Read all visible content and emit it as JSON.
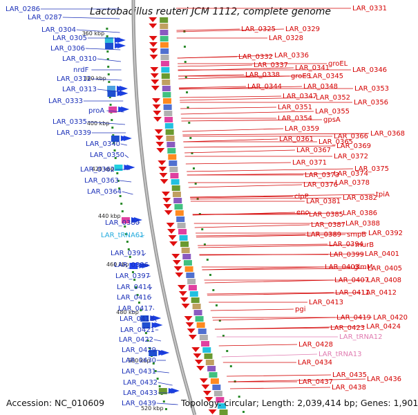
{
  "title": "Lactobacillus reuteri JCM 1112, complete genome",
  "accession": "Accession: NC_010609",
  "summary": "Topology: circular; Length: 2,039,414 bp; Genes: 1,901",
  "colors": {
    "left": "#1a2fb8",
    "right": "#d40000",
    "trna": "#22aadd",
    "trna_right": "#e07ab0"
  },
  "kbp_marks": [
    "360 kbp",
    "380 kbp",
    "400 kbp",
    "420 kbp",
    "440 kbp",
    "460 kbp",
    "480 kbp",
    "500 kbp",
    "520 kbp"
  ],
  "left_labels": [
    "LAR_0286",
    "LAR_0287",
    "LAR_0304",
    "LAR_0305",
    "LAR_0306",
    "LAR_0310",
    "nrdF",
    "LAR_0312",
    "LAR_0313",
    "LAR_0333",
    "proA",
    "LAR_0335",
    "LAR_0339",
    "LAR_0340",
    "LAR_0350",
    "LAR_0362",
    "LAR_0363",
    "LAR_0364",
    "LAR_0380",
    "LAR_tRNA61",
    "LAR_0391",
    "LAR_0396",
    "LAR_0397",
    "LAR_0414",
    "LAR_0416",
    "LAR_0417",
    "LAR_0418",
    "LAR_0421",
    "LAR_0422",
    "LAR_0429",
    "LAR_0430",
    "LAR_0431",
    "LAR_0432",
    "LAR_0433",
    "LAR_0439"
  ],
  "right_labels": [
    "LAR_0331",
    "LAR_0325",
    "LAR_0329",
    "LAR_0328",
    "LAR_0332",
    "LAR_0336",
    "groEL",
    "LAR_0337",
    "LAR_0341",
    "LAR_0346",
    "LAR_0338",
    "groES",
    "LAR_0345",
    "LAR_0344",
    "LAR_0348",
    "LAR_0353",
    "LAR_0347",
    "LAR_0352",
    "LAR_0356",
    "LAR_0351",
    "LAR_0355",
    "LAR_0354",
    "gpsA",
    "LAR_0359",
    "LAR_0366",
    "LAR_0368",
    "LAR_0361",
    "LAR_0365",
    "LAR_0369",
    "LAR_0367",
    "LAR_0372",
    "LAR_0371",
    "LAR_0375",
    "LAR_0373",
    "LAR_0374",
    "LAR_0376",
    "LAR_0378",
    "clpP",
    "tpiA",
    "LAR_0381",
    "LAR_0382",
    "eno",
    "LAR_0385",
    "LAR_0386",
    "LAR_0387",
    "LAR_0388",
    "LAR_0389",
    "smpB",
    "LAR_0392",
    "LAR_0394",
    "murB",
    "LAR_0399",
    "LAR_0401",
    "LAR_0403",
    "glmM",
    "LAR_0405",
    "LAR_0407",
    "LAR_0408",
    "LAR_0411",
    "LAR_0412",
    "LAR_0413",
    "pgi",
    "LAR_0419",
    "LAR_0420",
    "LAR_0423",
    "LAR_0424",
    "LAR_tRNA12",
    "LAR_0428",
    "LAR_tRNA13",
    "LAR_0434",
    "LAR_0435",
    "LAR_0436",
    "LAR_0437",
    "LAR_0438"
  ]
}
